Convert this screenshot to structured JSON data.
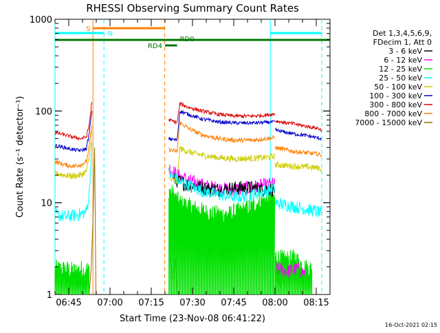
{
  "chart_data": {
    "type": "line",
    "title": "RHESSI Observing Summary Count Rates",
    "xlabel": "Start Time (23-Nov-08 06:41:22)",
    "ylabel": "Count Rate (s⁻¹ detector⁻¹)",
    "yscale": "log",
    "ylim": [
      1,
      1000
    ],
    "xlim_minutes": [
      -1.4,
      98.6
    ],
    "x_ticks": [
      {
        "label": "06:45",
        "minute": 3.6
      },
      {
        "label": "07:00",
        "minute": 18.6
      },
      {
        "label": "07:15",
        "minute": 33.6
      },
      {
        "label": "07:30",
        "minute": 48.6
      },
      {
        "label": "07:45",
        "minute": 63.6
      },
      {
        "label": "08:00",
        "minute": 78.6
      },
      {
        "label": "08:15",
        "minute": 93.6
      }
    ],
    "y_ticks": [
      {
        "label": "1",
        "value": 1
      },
      {
        "label": "10",
        "value": 10
      },
      {
        "label": "100",
        "value": 100
      },
      {
        "label": "1000",
        "value": 1000
      }
    ],
    "legend": {
      "placement": "right",
      "header": [
        "Det 1,3,4,5,6,9,",
        "FDecim 1, Att 0"
      ],
      "entries": [
        {
          "label": "3 - 6 keV",
          "color": "#000000"
        },
        {
          "label": "6 - 12 keV",
          "color": "#ff00ff"
        },
        {
          "label": "12 - 25 keV",
          "color": "#00e000"
        },
        {
          "label": "25 - 50 keV",
          "color": "#00ffff"
        },
        {
          "label": "50 - 100 keV",
          "color": "#cccc00"
        },
        {
          "label": "100 - 300 keV",
          "color": "#0000cc"
        },
        {
          "label": "300 - 800 keV",
          "color": "#dd0000"
        },
        {
          "label": "800 - 7000 keV",
          "color": "#ff7f00"
        },
        {
          "label": "7000 - 15000 keV",
          "color": "#8b7000"
        }
      ]
    },
    "state_bars": [
      {
        "label": "S",
        "color": "#ff7f00",
        "x_start": 12.5,
        "x_end": 38.5,
        "level": 1,
        "label_side": "left"
      },
      {
        "label": "N",
        "color": "#00ffff",
        "x_start": -1.4,
        "x_end": 16.5,
        "level": 2,
        "label_side": "right"
      },
      {
        "label": "N",
        "color": "#00ffff",
        "x_start": 76.9,
        "x_end": 95.5,
        "level": 2,
        "label_side": "none"
      },
      {
        "label": "RD0",
        "color": "#007700",
        "x_start": -1.4,
        "x_end": 98.6,
        "level": 3,
        "label_side": "none"
      },
      {
        "label": "RD4",
        "color": "#007700",
        "x_start": 38.6,
        "x_end": 43.0,
        "level": 4,
        "label_side": "left"
      }
    ],
    "state_labels": [
      {
        "text": "RD0",
        "color": "#007700",
        "x": 44.0
      }
    ],
    "vlines": [
      {
        "x": -1.4,
        "color": "#00ffff",
        "dashed": false
      },
      {
        "x": 12.4,
        "color": "#ff7f00",
        "dashed": false
      },
      {
        "x": 16.4,
        "color": "#00ffff",
        "dashed": true
      },
      {
        "x": 38.5,
        "color": "#ff7f00",
        "dashed": true
      },
      {
        "x": 76.9,
        "color": "#00ffff",
        "dashed": false
      },
      {
        "x": 95.6,
        "color": "#00ffff",
        "dashed": true
      }
    ],
    "series": [
      {
        "name": "7000 - 15000 keV",
        "color": "#8b7000",
        "noise": 0.0,
        "segments": [
          {
            "x": [
              11.0,
              11.8,
              12.5,
              13.0,
              13.5
            ],
            "y": [
              1,
              2,
              8,
              40,
              1
            ]
          },
          {
            "x": [
              40.5,
              41.5,
              42.5,
              43.0
            ],
            "y": [
              2.5,
              1.5,
              2.5,
              1
            ]
          },
          {
            "x": [
              79.5,
              80.5,
              81.5,
              82.5
            ],
            "y": [
              1.6,
              1.2,
              1.6,
              1.2
            ]
          }
        ]
      },
      {
        "name": "12 - 25 keV",
        "color": "#00e000",
        "noise": 0.1,
        "segments": [
          {
            "x": [
              -1.4,
              2.0,
              6.0,
              8.0,
              9.0,
              11.0
            ],
            "y": [
              1.9,
              1.9,
              1.8,
              1.9,
              1.8,
              1.9
            ]
          },
          {
            "x": [
              40.0,
              44.0,
              50.0,
              56.0,
              62.0,
              68.0,
              74.0,
              78.5
            ],
            "y": [
              14,
              10,
              8.5,
              7.5,
              7.5,
              8.5,
              10.5,
              11.5
            ]
          },
          {
            "x": [
              78.7,
              82.0,
              86.0,
              89.0,
              92.0
            ],
            "y": [
              2.6,
              2.4,
              2.5,
              2.0,
              1.9
            ]
          }
        ]
      },
      {
        "name": "6 - 12 keV",
        "color": "#ff00ff",
        "noise": 0.08,
        "segments": [
          {
            "x": [
              40.0,
              43.0,
              48.0,
              54.0,
              60.0,
              66.0,
              72.0,
              78.5
            ],
            "y": [
              24,
              20,
              17,
              15,
              14,
              14,
              15,
              16
            ]
          },
          {
            "x": [
              79.0,
              83.0,
              87.0,
              89.5
            ],
            "y": [
              1.9,
              1.8,
              1.9,
              1.7
            ]
          }
        ]
      },
      {
        "name": "3 - 6 keV",
        "color": "#000000",
        "noise": 0.08,
        "segments": [
          {
            "x": [
              42.0,
              46.0,
              50.0,
              55.0,
              60.0,
              65.0,
              70.0,
              75.0,
              78.5
            ],
            "y": [
              18,
              16,
              15,
              14,
              14,
              14.5,
              14.5,
              14,
              14
            ]
          }
        ]
      },
      {
        "name": "25 - 50 keV",
        "color": "#00ffff",
        "noise": 0.07,
        "segments": [
          {
            "x": [
              -1.4,
              2.0,
              5.0,
              8.0,
              10.0,
              11.0,
              12.0
            ],
            "y": [
              7.5,
              7.0,
              7.2,
              7.5,
              8.0,
              12,
              45
            ]
          },
          {
            "x": [
              40.0,
              44.0,
              48.0,
              52.0,
              56.0,
              60.0,
              65.0,
              70.0,
              75.0,
              78.5
            ],
            "y": [
              21,
              17,
              15,
              13.5,
              12.5,
              12,
              11.5,
              12,
              13.5,
              14.5
            ]
          },
          {
            "x": [
              78.7,
              82.0,
              86.0,
              90.0,
              94.0,
              95.5
            ],
            "y": [
              10,
              9.5,
              9.0,
              8.5,
              8.0,
              7.5
            ]
          }
        ]
      },
      {
        "name": "50 - 100 keV",
        "color": "#cccc00",
        "noise": 0.035,
        "segments": [
          {
            "x": [
              -1.4,
              2.0,
              5.0,
              8.0,
              10.0,
              11.0,
              12.0
            ],
            "y": [
              21,
              20,
              19.5,
              20,
              22,
              30,
              60
            ]
          },
          {
            "x": [
              40.0,
              43.0,
              44.0,
              47.0,
              52.0,
              58.0,
              64.0,
              70.0,
              75.0,
              78.5
            ],
            "y": [
              18,
              17,
              39,
              36,
              33,
              31,
              30,
              30.5,
              31,
              32
            ]
          },
          {
            "x": [
              78.7,
              82.0,
              86.0,
              90.0,
              94.0,
              95.5
            ],
            "y": [
              26,
              25.5,
              25,
              24.5,
              24,
              23.5
            ]
          }
        ]
      },
      {
        "name": "800 - 7000 keV",
        "color": "#ff7f00",
        "noise": 0.025,
        "segments": [
          {
            "x": [
              -1.4,
              2.0,
              5.0,
              8.0,
              10.0,
              11.0,
              12.0
            ],
            "y": [
              28,
              26,
              25,
              26,
              28,
              40,
              70
            ]
          },
          {
            "x": [
              40.0,
              43.0,
              44.0,
              47.0,
              52.0,
              58.0,
              64.0,
              70.0,
              75.0,
              78.5
            ],
            "y": [
              38,
              36,
              75,
              65,
              55,
              50,
              48,
              48,
              50,
              51
            ]
          },
          {
            "x": [
              78.7,
              82.0,
              86.0,
              90.0,
              94.0,
              95.5
            ],
            "y": [
              40,
              38,
              36,
              35,
              34,
              33
            ]
          }
        ]
      },
      {
        "name": "100 - 300 keV",
        "color": "#0000cc",
        "noise": 0.02,
        "segments": [
          {
            "x": [
              -1.4,
              2.0,
              5.0,
              8.0,
              10.0,
              11.0,
              12.0
            ],
            "y": [
              42,
              40,
              38,
              37,
              39,
              55,
              100
            ]
          },
          {
            "x": [
              40.0,
              43.0,
              44.0,
              47.0,
              52.0,
              58.0,
              64.0,
              70.0,
              75.0,
              78.5
            ],
            "y": [
              50,
              48,
              100,
              92,
              82,
              76,
              74,
              74,
              75,
              76
            ]
          },
          {
            "x": [
              78.7,
              82.0,
              86.0,
              90.0,
              94.0,
              95.5
            ],
            "y": [
              62,
              59,
              56,
              54,
              51,
              50
            ]
          }
        ]
      },
      {
        "name": "300 - 800 keV",
        "color": "#dd0000",
        "noise": 0.02,
        "segments": [
          {
            "x": [
              -1.4,
              2.0,
              5.0,
              8.0,
              10.0,
              11.0,
              12.0
            ],
            "y": [
              58,
              55,
              52,
              50,
              52,
              70,
              125
            ]
          },
          {
            "x": [
              40.0,
              43.0,
              44.0,
              47.0,
              52.0,
              58.0,
              64.0,
              70.0,
              75.0,
              78.5
            ],
            "y": [
              80,
              75,
              120,
              110,
              100,
              92,
              88,
              88,
              90,
              93
            ]
          },
          {
            "x": [
              78.7,
              82.0,
              86.0,
              90.0,
              94.0,
              95.5
            ],
            "y": [
              78,
              75,
              72,
              68,
              65,
              62
            ]
          }
        ]
      }
    ]
  },
  "footer": {
    "timestamp": "16-Oct-2021 02:15"
  }
}
